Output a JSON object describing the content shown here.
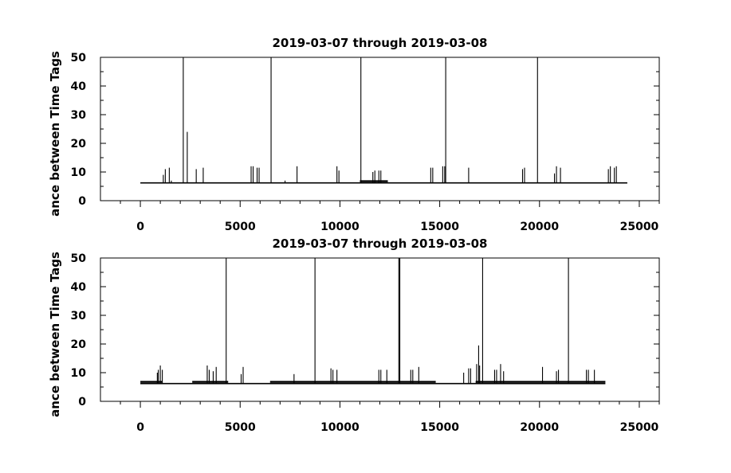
{
  "chart_data": [
    {
      "type": "line",
      "title": "2019-03-07 through 2019-03-08",
      "ylabel": "ance between Time Tags",
      "xlabel": "",
      "xlim": [
        -2000,
        26000
      ],
      "ylim": [
        0,
        50
      ],
      "xticks": [
        0,
        5000,
        10000,
        15000,
        20000,
        25000
      ],
      "yticks": [
        0,
        10,
        20,
        30,
        40,
        50
      ],
      "grid": false,
      "x_end": 24400,
      "baseline": 6.2,
      "baseline_segments": [
        {
          "x0": 11000,
          "x1": 12400,
          "y": 6.8
        }
      ],
      "spikes": [
        {
          "x": 1150,
          "y": 9
        },
        {
          "x": 1250,
          "y": 11
        },
        {
          "x": 1450,
          "y": 11.5
        },
        {
          "x": 1550,
          "y": 7
        },
        {
          "x": 2150,
          "y": 50
        },
        {
          "x": 2350,
          "y": 24
        },
        {
          "x": 2800,
          "y": 11
        },
        {
          "x": 3150,
          "y": 11.5
        },
        {
          "x": 5550,
          "y": 12
        },
        {
          "x": 5650,
          "y": 12
        },
        {
          "x": 5850,
          "y": 11.5
        },
        {
          "x": 5950,
          "y": 11.5
        },
        {
          "x": 6550,
          "y": 50
        },
        {
          "x": 7250,
          "y": 7
        },
        {
          "x": 7850,
          "y": 12
        },
        {
          "x": 9850,
          "y": 12
        },
        {
          "x": 9950,
          "y": 10.5
        },
        {
          "x": 11050,
          "y": 50
        },
        {
          "x": 11650,
          "y": 10
        },
        {
          "x": 11750,
          "y": 10.5
        },
        {
          "x": 11950,
          "y": 10.5
        },
        {
          "x": 12050,
          "y": 10.5
        },
        {
          "x": 14550,
          "y": 11.5
        },
        {
          "x": 14650,
          "y": 11.5
        },
        {
          "x": 15150,
          "y": 12
        },
        {
          "x": 15250,
          "y": 12
        },
        {
          "x": 15300,
          "y": 50
        },
        {
          "x": 16450,
          "y": 11.5
        },
        {
          "x": 19150,
          "y": 11
        },
        {
          "x": 19250,
          "y": 11.5
        },
        {
          "x": 19900,
          "y": 50
        },
        {
          "x": 20750,
          "y": 9.5
        },
        {
          "x": 20850,
          "y": 12
        },
        {
          "x": 21050,
          "y": 11.5
        },
        {
          "x": 23450,
          "y": 11
        },
        {
          "x": 23550,
          "y": 12
        },
        {
          "x": 23750,
          "y": 11.5
        },
        {
          "x": 23850,
          "y": 12
        }
      ]
    },
    {
      "type": "line",
      "title": "2019-03-07 through 2019-03-08",
      "ylabel": "ance between Time Tags",
      "xlabel": "",
      "xlim": [
        -2000,
        26000
      ],
      "ylim": [
        0,
        50
      ],
      "xticks": [
        0,
        5000,
        10000,
        15000,
        20000,
        25000
      ],
      "yticks": [
        0,
        10,
        20,
        30,
        40,
        50
      ],
      "grid": false,
      "x_end": 23300,
      "baseline": 6.2,
      "baseline_segments": [
        {
          "x0": 0,
          "x1": 1100,
          "y": 6.8
        },
        {
          "x0": 2600,
          "y": 6.8,
          "x1": 4400
        },
        {
          "x0": 6500,
          "x1": 14800,
          "y": 6.8
        },
        {
          "x0": 16800,
          "x1": 23300,
          "y": 6.8
        }
      ],
      "spikes": [
        {
          "x": 850,
          "y": 10
        },
        {
          "x": 900,
          "y": 11
        },
        {
          "x": 1000,
          "y": 12.5
        },
        {
          "x": 1100,
          "y": 11
        },
        {
          "x": 3350,
          "y": 12.5
        },
        {
          "x": 3450,
          "y": 11
        },
        {
          "x": 3650,
          "y": 10.5
        },
        {
          "x": 3800,
          "y": 12
        },
        {
          "x": 4300,
          "y": 50
        },
        {
          "x": 5050,
          "y": 9.5
        },
        {
          "x": 5150,
          "y": 12
        },
        {
          "x": 7700,
          "y": 9.5
        },
        {
          "x": 8750,
          "y": 50
        },
        {
          "x": 9550,
          "y": 11.5
        },
        {
          "x": 9650,
          "y": 11
        },
        {
          "x": 9850,
          "y": 11
        },
        {
          "x": 11950,
          "y": 11
        },
        {
          "x": 12050,
          "y": 11
        },
        {
          "x": 12350,
          "y": 11
        },
        {
          "x": 12950,
          "y": 50
        },
        {
          "x": 13000,
          "y": 50
        },
        {
          "x": 13550,
          "y": 11
        },
        {
          "x": 13650,
          "y": 11
        },
        {
          "x": 13950,
          "y": 12
        },
        {
          "x": 16200,
          "y": 10
        },
        {
          "x": 16450,
          "y": 11.5
        },
        {
          "x": 16550,
          "y": 11.5
        },
        {
          "x": 16850,
          "y": 13
        },
        {
          "x": 16950,
          "y": 19.5
        },
        {
          "x": 17000,
          "y": 12.5
        },
        {
          "x": 17150,
          "y": 50
        },
        {
          "x": 17750,
          "y": 11
        },
        {
          "x": 17850,
          "y": 11
        },
        {
          "x": 18050,
          "y": 13
        },
        {
          "x": 18200,
          "y": 10.5
        },
        {
          "x": 20150,
          "y": 12
        },
        {
          "x": 20850,
          "y": 10.5
        },
        {
          "x": 20950,
          "y": 11
        },
        {
          "x": 21450,
          "y": 50
        },
        {
          "x": 22350,
          "y": 11
        },
        {
          "x": 22450,
          "y": 11
        },
        {
          "x": 22750,
          "y": 11
        }
      ]
    }
  ]
}
